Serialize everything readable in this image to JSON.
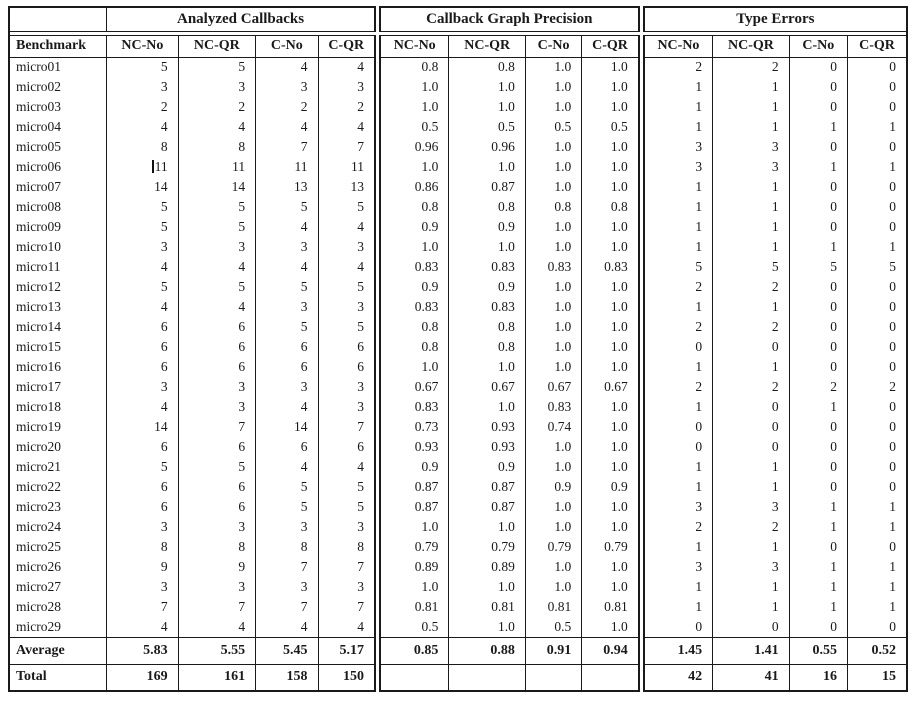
{
  "page": {
    "background": "#ffffff",
    "text_color": "#1a1a1a"
  },
  "table": {
    "corner_label": "",
    "benchmark_header": "Benchmark",
    "groups": [
      {
        "label": "Analyzed Callbacks",
        "columns": [
          "NC-No",
          "NC-QR",
          "C-No",
          "C-QR"
        ]
      },
      {
        "label": "Callback Graph Precision",
        "columns": [
          "NC-No",
          "NC-QR",
          "C-No",
          "C-QR"
        ]
      },
      {
        "label": "Type Errors",
        "columns": [
          "NC-No",
          "NC-QR",
          "C-No",
          "C-QR"
        ]
      }
    ],
    "rows": [
      {
        "name": "micro01",
        "values": [
          "5",
          "5",
          "4",
          "4",
          "0.8",
          "0.8",
          "1.0",
          "1.0",
          "2",
          "2",
          "0",
          "0"
        ]
      },
      {
        "name": "micro02",
        "values": [
          "3",
          "3",
          "3",
          "3",
          "1.0",
          "1.0",
          "1.0",
          "1.0",
          "1",
          "1",
          "0",
          "0"
        ]
      },
      {
        "name": "micro03",
        "values": [
          "2",
          "2",
          "2",
          "2",
          "1.0",
          "1.0",
          "1.0",
          "1.0",
          "1",
          "1",
          "0",
          "0"
        ]
      },
      {
        "name": "micro04",
        "values": [
          "4",
          "4",
          "4",
          "4",
          "0.5",
          "0.5",
          "0.5",
          "0.5",
          "1",
          "1",
          "1",
          "1"
        ]
      },
      {
        "name": "micro05",
        "values": [
          "8",
          "8",
          "7",
          "7",
          "0.96",
          "0.96",
          "1.0",
          "1.0",
          "3",
          "3",
          "0",
          "0"
        ]
      },
      {
        "name": "micro06",
        "values": [
          "11",
          "11",
          "11",
          "11",
          "1.0",
          "1.0",
          "1.0",
          "1.0",
          "3",
          "3",
          "1",
          "1"
        ]
      },
      {
        "name": "micro07",
        "values": [
          "14",
          "14",
          "13",
          "13",
          "0.86",
          "0.87",
          "1.0",
          "1.0",
          "1",
          "1",
          "0",
          "0"
        ]
      },
      {
        "name": "micro08",
        "values": [
          "5",
          "5",
          "5",
          "5",
          "0.8",
          "0.8",
          "0.8",
          "0.8",
          "1",
          "1",
          "0",
          "0"
        ]
      },
      {
        "name": "micro09",
        "values": [
          "5",
          "5",
          "4",
          "4",
          "0.9",
          "0.9",
          "1.0",
          "1.0",
          "1",
          "1",
          "0",
          "0"
        ]
      },
      {
        "name": "micro10",
        "values": [
          "3",
          "3",
          "3",
          "3",
          "1.0",
          "1.0",
          "1.0",
          "1.0",
          "1",
          "1",
          "1",
          "1"
        ]
      },
      {
        "name": "micro11",
        "values": [
          "4",
          "4",
          "4",
          "4",
          "0.83",
          "0.83",
          "0.83",
          "0.83",
          "5",
          "5",
          "5",
          "5"
        ]
      },
      {
        "name": "micro12",
        "values": [
          "5",
          "5",
          "5",
          "5",
          "0.9",
          "0.9",
          "1.0",
          "1.0",
          "2",
          "2",
          "0",
          "0"
        ]
      },
      {
        "name": "micro13",
        "values": [
          "4",
          "4",
          "3",
          "3",
          "0.83",
          "0.83",
          "1.0",
          "1.0",
          "1",
          "1",
          "0",
          "0"
        ]
      },
      {
        "name": "micro14",
        "values": [
          "6",
          "6",
          "5",
          "5",
          "0.8",
          "0.8",
          "1.0",
          "1.0",
          "2",
          "2",
          "0",
          "0"
        ]
      },
      {
        "name": "micro15",
        "values": [
          "6",
          "6",
          "6",
          "6",
          "0.8",
          "0.8",
          "1.0",
          "1.0",
          "0",
          "0",
          "0",
          "0"
        ]
      },
      {
        "name": "micro16",
        "values": [
          "6",
          "6",
          "6",
          "6",
          "1.0",
          "1.0",
          "1.0",
          "1.0",
          "1",
          "1",
          "0",
          "0"
        ]
      },
      {
        "name": "micro17",
        "values": [
          "3",
          "3",
          "3",
          "3",
          "0.67",
          "0.67",
          "0.67",
          "0.67",
          "2",
          "2",
          "2",
          "2"
        ]
      },
      {
        "name": "micro18",
        "values": [
          "4",
          "3",
          "4",
          "3",
          "0.83",
          "1.0",
          "0.83",
          "1.0",
          "1",
          "0",
          "1",
          "0"
        ]
      },
      {
        "name": "micro19",
        "values": [
          "14",
          "7",
          "14",
          "7",
          "0.73",
          "0.93",
          "0.74",
          "1.0",
          "0",
          "0",
          "0",
          "0"
        ]
      },
      {
        "name": "micro20",
        "values": [
          "6",
          "6",
          "6",
          "6",
          "0.93",
          "0.93",
          "1.0",
          "1.0",
          "0",
          "0",
          "0",
          "0"
        ]
      },
      {
        "name": "micro21",
        "values": [
          "5",
          "5",
          "4",
          "4",
          "0.9",
          "0.9",
          "1.0",
          "1.0",
          "1",
          "1",
          "0",
          "0"
        ]
      },
      {
        "name": "micro22",
        "values": [
          "6",
          "6",
          "5",
          "5",
          "0.87",
          "0.87",
          "0.9",
          "0.9",
          "1",
          "1",
          "0",
          "0"
        ]
      },
      {
        "name": "micro23",
        "values": [
          "6",
          "6",
          "5",
          "5",
          "0.87",
          "0.87",
          "1.0",
          "1.0",
          "3",
          "3",
          "1",
          "1"
        ]
      },
      {
        "name": "micro24",
        "values": [
          "3",
          "3",
          "3",
          "3",
          "1.0",
          "1.0",
          "1.0",
          "1.0",
          "2",
          "2",
          "1",
          "1"
        ]
      },
      {
        "name": "micro25",
        "values": [
          "8",
          "8",
          "8",
          "8",
          "0.79",
          "0.79",
          "0.79",
          "0.79",
          "1",
          "1",
          "0",
          "0"
        ]
      },
      {
        "name": "micro26",
        "values": [
          "9",
          "9",
          "7",
          "7",
          "0.89",
          "0.89",
          "1.0",
          "1.0",
          "3",
          "3",
          "1",
          "1"
        ]
      },
      {
        "name": "micro27",
        "values": [
          "3",
          "3",
          "3",
          "3",
          "1.0",
          "1.0",
          "1.0",
          "1.0",
          "1",
          "1",
          "1",
          "1"
        ]
      },
      {
        "name": "micro28",
        "values": [
          "7",
          "7",
          "7",
          "7",
          "0.81",
          "0.81",
          "0.81",
          "0.81",
          "1",
          "1",
          "1",
          "1"
        ]
      },
      {
        "name": "micro29",
        "values": [
          "4",
          "4",
          "4",
          "4",
          "0.5",
          "1.0",
          "0.5",
          "1.0",
          "0",
          "0",
          "0",
          "0"
        ]
      }
    ],
    "summary_rows": [
      {
        "label": "Average",
        "values": [
          "5.83",
          "5.55",
          "5.45",
          "5.17",
          "0.85",
          "0.88",
          "0.91",
          "0.94",
          "1.45",
          "1.41",
          "0.55",
          "0.52"
        ]
      },
      {
        "label": "Total",
        "values": [
          "169",
          "161",
          "158",
          "150",
          "",
          "",
          "",
          "",
          "42",
          "41",
          "16",
          "15"
        ]
      }
    ],
    "caret_artifact": {
      "row": 5,
      "col": 0
    }
  }
}
